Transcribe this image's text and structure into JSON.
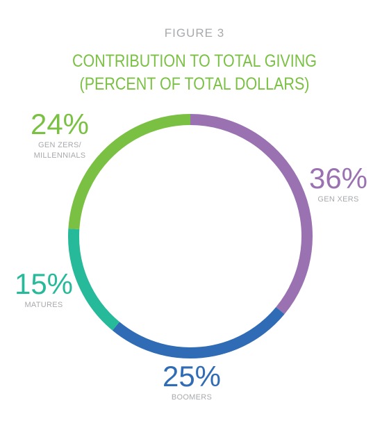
{
  "figure_label": "FIGURE 3",
  "title_line1": "CONTRIBUTION TO TOTAL GIVING",
  "title_line2": "(PERCENT OF TOTAL DOLLARS)",
  "chart_data": {
    "type": "pie",
    "variant": "donut",
    "title": "CONTRIBUTION TO TOTAL GIVING (PERCENT OF TOTAL DOLLARS)",
    "categories": [
      "GEN XERS",
      "BOOMERS",
      "MATURES",
      "GEN ZERS/ MILLENNIALS"
    ],
    "values": [
      36,
      25,
      15,
      24
    ],
    "labels": [
      "36%",
      "25%",
      "15%",
      "24%"
    ],
    "colors": [
      "#9b72b1",
      "#2f6cb5",
      "#26b99a",
      "#7ac143"
    ],
    "start": "top, clockwise"
  }
}
